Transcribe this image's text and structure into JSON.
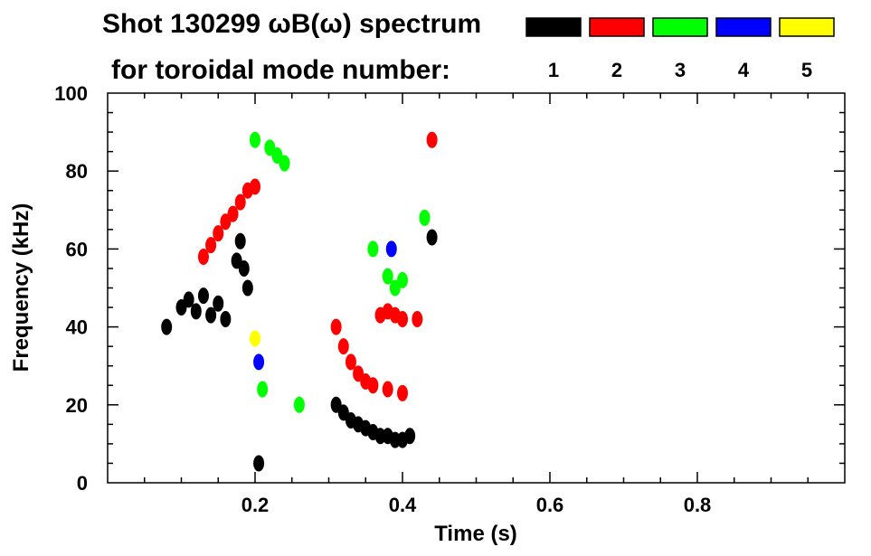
{
  "header": {
    "title": "Shot 130299 ωB(ω) spectrum",
    "subtitle": "for toroidal mode number:"
  },
  "legend": [
    {
      "label": "1",
      "color": "#000000"
    },
    {
      "label": "2",
      "color": "#ff0000"
    },
    {
      "label": "3",
      "color": "#00ff00"
    },
    {
      "label": "4",
      "color": "#0000ff"
    },
    {
      "label": "5",
      "color": "#ffff00"
    }
  ],
  "chart_data": {
    "type": "scatter",
    "xlabel": "Time (s)",
    "ylabel": "Frequency (kHz)",
    "xlim": [
      0.0,
      1.0
    ],
    "ylim": [
      0,
      100
    ],
    "x_ticks": [
      {
        "value": 0.2,
        "label": "0.2"
      },
      {
        "value": 0.4,
        "label": "0.4"
      },
      {
        "value": 0.6,
        "label": "0.6"
      },
      {
        "value": 0.8,
        "label": "0.8"
      }
    ],
    "y_ticks": [
      {
        "value": 0,
        "label": "0"
      },
      {
        "value": 20,
        "label": "20"
      },
      {
        "value": 40,
        "label": "40"
      },
      {
        "value": 60,
        "label": "60"
      },
      {
        "value": 80,
        "label": "80"
      },
      {
        "value": 100,
        "label": "100"
      }
    ],
    "series": [
      {
        "name": "1",
        "color": "#000000",
        "points": [
          {
            "t": 0.08,
            "f": 40
          },
          {
            "t": 0.1,
            "f": 45
          },
          {
            "t": 0.11,
            "f": 47
          },
          {
            "t": 0.12,
            "f": 44
          },
          {
            "t": 0.13,
            "f": 48
          },
          {
            "t": 0.14,
            "f": 43
          },
          {
            "t": 0.15,
            "f": 46
          },
          {
            "t": 0.16,
            "f": 42
          },
          {
            "t": 0.175,
            "f": 57
          },
          {
            "t": 0.18,
            "f": 62
          },
          {
            "t": 0.185,
            "f": 55
          },
          {
            "t": 0.19,
            "f": 50
          },
          {
            "t": 0.205,
            "f": 5
          },
          {
            "t": 0.31,
            "f": 20
          },
          {
            "t": 0.32,
            "f": 18
          },
          {
            "t": 0.33,
            "f": 16
          },
          {
            "t": 0.34,
            "f": 15
          },
          {
            "t": 0.35,
            "f": 14
          },
          {
            "t": 0.36,
            "f": 13
          },
          {
            "t": 0.37,
            "f": 12
          },
          {
            "t": 0.38,
            "f": 12
          },
          {
            "t": 0.39,
            "f": 11
          },
          {
            "t": 0.4,
            "f": 11
          },
          {
            "t": 0.41,
            "f": 12
          },
          {
            "t": 0.44,
            "f": 63
          }
        ]
      },
      {
        "name": "2",
        "color": "#ff0000",
        "points": [
          {
            "t": 0.13,
            "f": 58
          },
          {
            "t": 0.14,
            "f": 61
          },
          {
            "t": 0.15,
            "f": 64
          },
          {
            "t": 0.16,
            "f": 67
          },
          {
            "t": 0.17,
            "f": 69
          },
          {
            "t": 0.18,
            "f": 72
          },
          {
            "t": 0.19,
            "f": 75
          },
          {
            "t": 0.2,
            "f": 76
          },
          {
            "t": 0.31,
            "f": 40
          },
          {
            "t": 0.32,
            "f": 35
          },
          {
            "t": 0.33,
            "f": 31
          },
          {
            "t": 0.34,
            "f": 28
          },
          {
            "t": 0.35,
            "f": 26
          },
          {
            "t": 0.36,
            "f": 25
          },
          {
            "t": 0.38,
            "f": 24
          },
          {
            "t": 0.4,
            "f": 23
          },
          {
            "t": 0.37,
            "f": 43
          },
          {
            "t": 0.38,
            "f": 44
          },
          {
            "t": 0.39,
            "f": 43
          },
          {
            "t": 0.4,
            "f": 42
          },
          {
            "t": 0.42,
            "f": 42
          },
          {
            "t": 0.44,
            "f": 88
          }
        ]
      },
      {
        "name": "3",
        "color": "#00ff00",
        "points": [
          {
            "t": 0.2,
            "f": 88
          },
          {
            "t": 0.22,
            "f": 86
          },
          {
            "t": 0.23,
            "f": 84
          },
          {
            "t": 0.24,
            "f": 82
          },
          {
            "t": 0.21,
            "f": 24
          },
          {
            "t": 0.26,
            "f": 20
          },
          {
            "t": 0.36,
            "f": 60
          },
          {
            "t": 0.38,
            "f": 53
          },
          {
            "t": 0.39,
            "f": 50
          },
          {
            "t": 0.4,
            "f": 52
          },
          {
            "t": 0.43,
            "f": 68
          }
        ]
      },
      {
        "name": "4",
        "color": "#0000ff",
        "points": [
          {
            "t": 0.205,
            "f": 31
          },
          {
            "t": 0.385,
            "f": 60
          }
        ]
      },
      {
        "name": "5",
        "color": "#ffff00",
        "points": [
          {
            "t": 0.2,
            "f": 37
          }
        ]
      }
    ]
  }
}
